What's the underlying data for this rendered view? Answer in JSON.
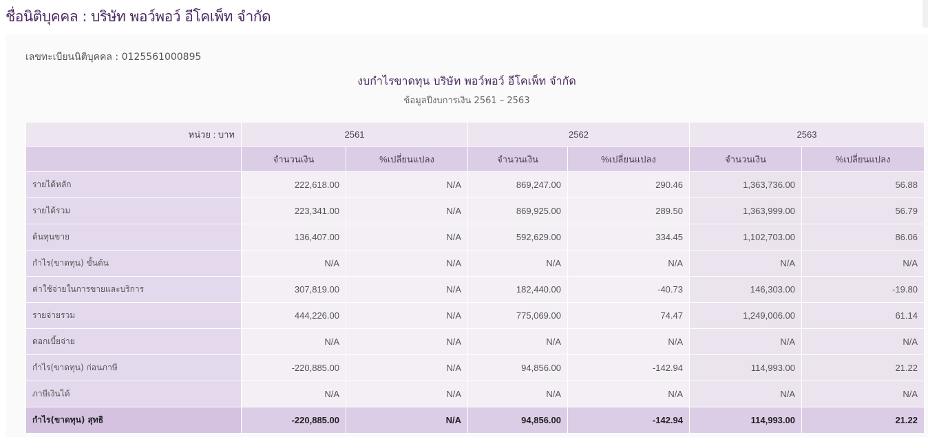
{
  "title": "ชื่อนิติบุคคล : บริษัท พอว์พอว์ อีโคเพ็ท จำกัด",
  "registration": "เลขทะเบียนนิติบุคคล : 0125561000895",
  "statement_title": "งบกำไรขาดทุน บริษัท พอว์พอว์ อีโคเพ็ท จำกัด",
  "statement_subtitle": "ข้อมูลปีงบการเงิน 2561 – 2563",
  "table": {
    "unit": "หน่วย : บาท",
    "years": [
      "2561",
      "2562",
      "2563"
    ],
    "sub_headers": [
      "จำนวนเงิน",
      "%เปลี่ยนแปลง"
    ],
    "rows": [
      {
        "label": "รายได้หลัก",
        "values": [
          "222,618.00",
          "N/A",
          "869,247.00",
          "290.46",
          "1,363,736.00",
          "56.88"
        ]
      },
      {
        "label": "รายได้รวม",
        "values": [
          "223,341.00",
          "N/A",
          "869,925.00",
          "289.50",
          "1,363,999.00",
          "56.79"
        ]
      },
      {
        "label": "ต้นทุนขาย",
        "values": [
          "136,407.00",
          "N/A",
          "592,629.00",
          "334.45",
          "1,102,703.00",
          "86.06"
        ]
      },
      {
        "label": "กำไร(ขาดทุน) ขั้นต้น",
        "values": [
          "N/A",
          "N/A",
          "N/A",
          "N/A",
          "N/A",
          "N/A"
        ]
      },
      {
        "label": "ค่าใช้จ่ายในการขายและบริการ",
        "values": [
          "307,819.00",
          "N/A",
          "182,440.00",
          "-40.73",
          "146,303.00",
          "-19.80"
        ]
      },
      {
        "label": "รายจ่ายรวม",
        "values": [
          "444,226.00",
          "N/A",
          "775,069.00",
          "74.47",
          "1,249,006.00",
          "61.14"
        ]
      },
      {
        "label": "ดอกเบี้ยจ่าย",
        "values": [
          "N/A",
          "N/A",
          "N/A",
          "N/A",
          "N/A",
          "N/A"
        ]
      },
      {
        "label": "กำไร(ขาดทุน) ก่อนภาษี",
        "values": [
          "-220,885.00",
          "N/A",
          "94,856.00",
          "-142.94",
          "114,993.00",
          "21.22"
        ]
      },
      {
        "label": "ภาษีเงินได้",
        "values": [
          "N/A",
          "N/A",
          "N/A",
          "N/A",
          "N/A",
          "N/A"
        ]
      },
      {
        "label": "กำไร(ขาดทุน) สุทธิ",
        "values": [
          "-220,885.00",
          "N/A",
          "94,856.00",
          "-142.94",
          "114,993.00",
          "21.22"
        ],
        "total": true
      }
    ]
  }
}
